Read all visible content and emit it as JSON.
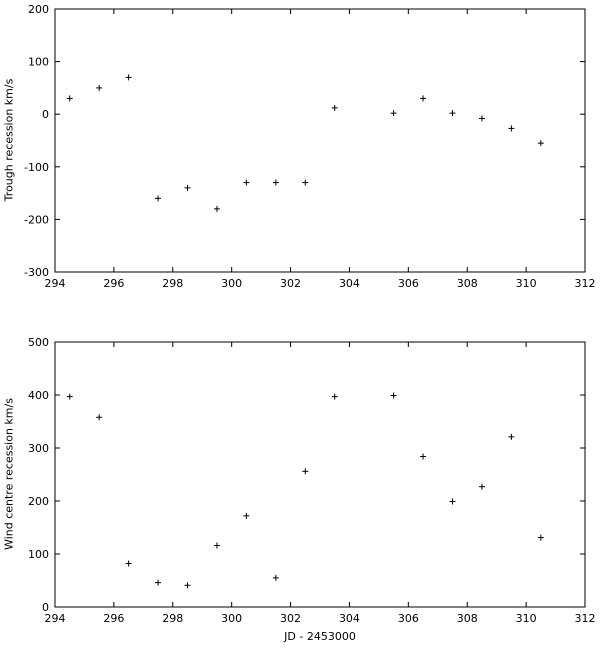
{
  "chart_data": [
    {
      "type": "scatter",
      "marker": "+",
      "xlim": [
        294,
        312
      ],
      "ylim": [
        -300,
        200
      ],
      "xticks": [
        294,
        296,
        298,
        300,
        302,
        304,
        306,
        308,
        310,
        312
      ],
      "yticks": [
        -300,
        -200,
        -100,
        0,
        100,
        200
      ],
      "xtick_labels": [
        "294",
        "296",
        "298",
        "300",
        "302",
        "304",
        "306",
        "308",
        "310",
        "312"
      ],
      "ytick_labels": [
        "-300",
        "-200",
        "-100",
        "0",
        "100",
        "200"
      ],
      "xlabel": "",
      "ylabel": "Trough recession km/s",
      "grid": false,
      "x": [
        294.5,
        295.5,
        296.5,
        297.5,
        298.5,
        299.5,
        300.5,
        301.5,
        302.5,
        303.5,
        305.5,
        306.5,
        307.5,
        308.5,
        309.5,
        310.5
      ],
      "y": [
        30,
        50,
        70,
        -160,
        -140,
        -180,
        -130,
        -130,
        -130,
        12,
        2,
        30,
        2,
        -8,
        -27,
        -55
      ]
    },
    {
      "type": "scatter",
      "marker": "+",
      "xlim": [
        294,
        312
      ],
      "ylim": [
        0,
        500
      ],
      "xticks": [
        294,
        296,
        298,
        300,
        302,
        304,
        306,
        308,
        310,
        312
      ],
      "yticks": [
        0,
        100,
        200,
        300,
        400,
        500
      ],
      "xtick_labels": [
        "294",
        "296",
        "298",
        "300",
        "302",
        "304",
        "306",
        "308",
        "310",
        "312"
      ],
      "ytick_labels": [
        "0",
        "100",
        "200",
        "300",
        "400",
        "500"
      ],
      "xlabel": "JD - 2453000",
      "ylabel": "Wind centre recession km/s",
      "grid": false,
      "x": [
        294.5,
        295.5,
        296.5,
        297.5,
        298.5,
        299.5,
        300.5,
        301.5,
        302.5,
        303.5,
        305.5,
        306.5,
        307.5,
        308.5,
        309.5,
        310.5
      ],
      "y": [
        397,
        358,
        82,
        46,
        41,
        116,
        172,
        55,
        256,
        397,
        399,
        284,
        199,
        227,
        321,
        131
      ]
    }
  ]
}
